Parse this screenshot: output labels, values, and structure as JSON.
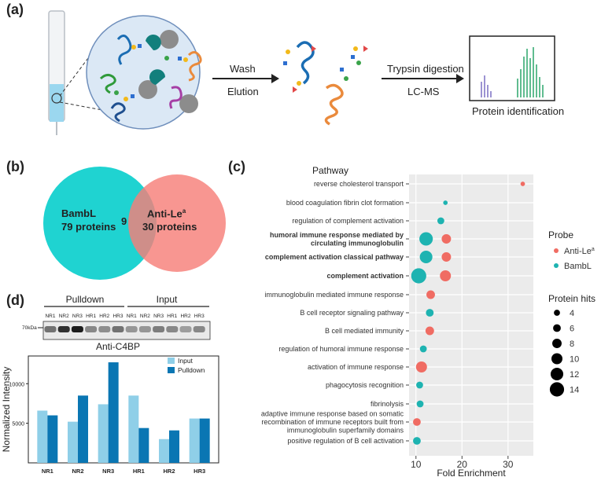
{
  "panels": {
    "a": "(a)",
    "b": "(b)",
    "c": "(c)",
    "d": "(d)"
  },
  "workflow": {
    "step1_top": "Wash",
    "step1_bottom": "Elution",
    "step2_top": "Trypsin digestion",
    "step2_bottom": "LC-MS",
    "result_label": "Protein identification"
  },
  "venn": {
    "left_name": "BambL",
    "left_count": "79 proteins",
    "overlap": "9",
    "right_name": "Anti-Le",
    "right_sup": "a",
    "right_count": "30 proteins",
    "colors": {
      "left": "#1fd3d1",
      "right": "#f77f79"
    }
  },
  "dotplot": {
    "header": "Pathway",
    "xlabel": "Fold Enrichment",
    "xticks": [
      "10",
      "20",
      "30"
    ],
    "xlim": [
      8.5,
      35.5
    ],
    "legend_probe_title": "Probe",
    "legend_probe": [
      {
        "label": "Anti-Le",
        "sup": "a",
        "color": "#f06c63"
      },
      {
        "label": "BambL",
        "sup": "",
        "color": "#1eb3b1"
      }
    ],
    "legend_size_title": "Protein hits",
    "legend_sizes": [
      "4",
      "6",
      "8",
      "10",
      "12",
      "14"
    ],
    "rows": [
      {
        "label": "reverse cholesterol transport",
        "bold": false
      },
      {
        "label": "blood coagulation fibrin clot formation",
        "bold": false
      },
      {
        "label": "regulation of complement activation",
        "bold": false
      },
      {
        "label": "humoral immune response mediated by|circulating immunoglobulin",
        "bold": true
      },
      {
        "label": "complement activation classical pathway",
        "bold": true
      },
      {
        "label": "complement activation",
        "bold": true
      },
      {
        "label": "immunoglobulin mediated immune response",
        "bold": false
      },
      {
        "label": "B cell receptor signaling pathway",
        "bold": false
      },
      {
        "label": "B cell mediated immunity",
        "bold": false
      },
      {
        "label": "regulation of humoral immune response",
        "bold": false
      },
      {
        "label": "activation of immune response",
        "bold": false
      },
      {
        "label": "phagocytosis recognition",
        "bold": false
      },
      {
        "label": "fibrinolysis",
        "bold": false
      },
      {
        "label": "adaptive immune response based on somatic|recombination of immune receptors built from|immunoglobulin superfamily domains",
        "bold": false
      },
      {
        "label": "positive regulation of B cell activation",
        "bold": false
      }
    ],
    "points": [
      {
        "row": 0,
        "probe": "Anti-Le",
        "x": 33.2,
        "hits": 2
      },
      {
        "row": 1,
        "probe": "BambL",
        "x": 16.4,
        "hits": 2
      },
      {
        "row": 2,
        "probe": "BambL",
        "x": 15.4,
        "hits": 5
      },
      {
        "row": 3,
        "probe": "BambL",
        "x": 12.2,
        "hits": 13
      },
      {
        "row": 3,
        "probe": "Anti-Le",
        "x": 16.6,
        "hits": 8
      },
      {
        "row": 4,
        "probe": "BambL",
        "x": 12.2,
        "hits": 12
      },
      {
        "row": 4,
        "probe": "Anti-Le",
        "x": 16.6,
        "hits": 8
      },
      {
        "row": 5,
        "probe": "BambL",
        "x": 10.6,
        "hits": 15
      },
      {
        "row": 5,
        "probe": "Anti-Le",
        "x": 16.4,
        "hits": 10
      },
      {
        "row": 6,
        "probe": "Anti-Le",
        "x": 13.2,
        "hits": 7
      },
      {
        "row": 7,
        "probe": "BambL",
        "x": 13.0,
        "hits": 6
      },
      {
        "row": 8,
        "probe": "Anti-Le",
        "x": 13.0,
        "hits": 7
      },
      {
        "row": 9,
        "probe": "BambL",
        "x": 11.6,
        "hits": 5
      },
      {
        "row": 10,
        "probe": "Anti-Le",
        "x": 11.2,
        "hits": 10
      },
      {
        "row": 11,
        "probe": "BambL",
        "x": 10.8,
        "hits": 5
      },
      {
        "row": 12,
        "probe": "BambL",
        "x": 10.9,
        "hits": 5
      },
      {
        "row": 13,
        "probe": "Anti-Le",
        "x": 10.2,
        "hits": 6
      },
      {
        "row": 14,
        "probe": "BambL",
        "x": 10.2,
        "hits": 6
      }
    ]
  },
  "blot": {
    "group_left": "Pulldown",
    "group_right": "Input",
    "lanes": [
      "NR1",
      "NR2",
      "NR3",
      "HR1",
      "HR2",
      "HR3",
      "NR1",
      "NR2",
      "NR3",
      "HR1",
      "HR2",
      "HR3"
    ],
    "marker": "70kDa",
    "antibody": "Anti-C4BP"
  },
  "chart_data": {
    "type": "bar",
    "categories": [
      "NR1",
      "NR2",
      "NR3",
      "HR1",
      "HR2",
      "HR3"
    ],
    "series": [
      {
        "name": "Input",
        "values": [
          6600,
          5200,
          7400,
          8500,
          3000,
          5600
        ],
        "color": "#8fcfe8"
      },
      {
        "name": "Pulldown",
        "values": [
          6000,
          8500,
          12700,
          4400,
          4100,
          5600
        ],
        "color": "#0a76b3"
      }
    ],
    "xlabel": "",
    "ylabel": "Normalized Intensity",
    "yticks": [
      5000,
      10000
    ],
    "ylim": [
      0,
      13500
    ]
  }
}
